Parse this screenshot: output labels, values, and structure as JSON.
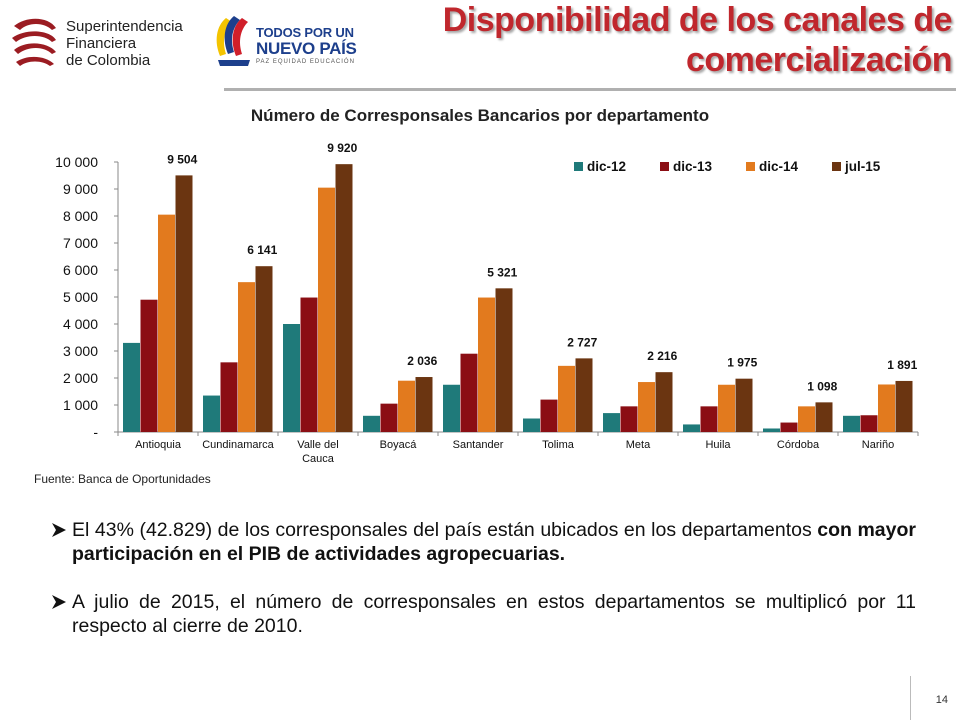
{
  "header": {
    "title": "Disponibilidad de los canales de comercialización",
    "logo_sfc_lines": [
      "Superintendencia",
      "Financiera",
      "de Colombia"
    ],
    "logo_nuevo_pais": {
      "line1": "TODOS POR UN",
      "line2": "NUEVO PAÍS",
      "line3": "PAZ  EQUIDAD  EDUCACIÓN"
    }
  },
  "chart_data": {
    "type": "bar",
    "title": "Número de Corresponsales Bancarios por departamento",
    "categories": [
      "Antioquia",
      "Cundinamarca",
      "Valle del Cauca",
      "Boyacá",
      "Santander",
      "Tolima",
      "Meta",
      "Huila",
      "Córdoba",
      "Nariño"
    ],
    "category_label_lines": [
      [
        "Antioquia"
      ],
      [
        "Cundinamarca"
      ],
      [
        "Valle del",
        "Cauca"
      ],
      [
        "Boyacá"
      ],
      [
        "Santander"
      ],
      [
        "Tolima"
      ],
      [
        "Meta"
      ],
      [
        "Huila"
      ],
      [
        "Córdoba"
      ],
      [
        "Nariño"
      ]
    ],
    "series": [
      {
        "name": "dic-12",
        "color": "#1f7a7a",
        "values": [
          3300,
          1350,
          4000,
          600,
          1750,
          500,
          700,
          280,
          130,
          600
        ]
      },
      {
        "name": "dic-13",
        "color": "#8b0e14",
        "values": [
          4900,
          2580,
          4980,
          1050,
          2900,
          1200,
          950,
          950,
          350,
          620
        ]
      },
      {
        "name": "dic-14",
        "color": "#e27a1e",
        "values": [
          8050,
          5550,
          9050,
          1900,
          4980,
          2450,
          1850,
          1750,
          950,
          1760
        ]
      },
      {
        "name": "jul-15",
        "color": "#6b3511",
        "values": [
          9504,
          6141,
          9920,
          2036,
          5321,
          2727,
          2216,
          1975,
          1098,
          1891
        ]
      }
    ],
    "data_labels": [
      "9 504",
      "6 141",
      "9 920",
      "2 036",
      "5 321",
      "2 727",
      "2 216",
      "1 975",
      "1 098",
      "1 891"
    ],
    "ylim": [
      0,
      10000
    ],
    "y_ticks": [
      0,
      1000,
      2000,
      3000,
      4000,
      5000,
      6000,
      7000,
      8000,
      9000,
      10000
    ],
    "y_tick_labels": [
      "-",
      "1 000",
      "2 000",
      "3 000",
      "4 000",
      "5 000",
      "6 000",
      "7 000",
      "8 000",
      "9 000",
      "10 000"
    ],
    "xlabel": "",
    "ylabel": "",
    "grid": false,
    "legend": "top-right"
  },
  "source": "Fuente: Banca de Oportunidades",
  "bullets": [
    {
      "parts": [
        {
          "text": "El 43% (42.829) de los corresponsales del país están ubicados en los departamentos ",
          "bold": false
        },
        {
          "text": "con mayor participación en el PIB de actividades agropecuarias.",
          "bold": true
        }
      ]
    },
    {
      "parts": [
        {
          "text": "A julio de 2015, el número de corresponsales en estos departamentos se multiplicó por 11 respecto al cierre de 2010.",
          "bold": false
        }
      ]
    }
  ],
  "page_number": "14"
}
